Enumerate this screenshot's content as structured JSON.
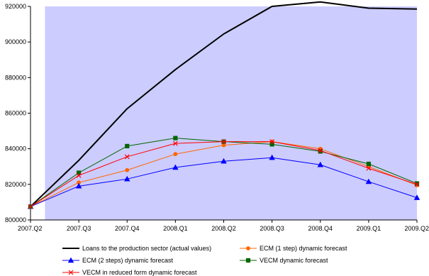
{
  "chart_data": {
    "type": "line",
    "categories": [
      "2007.Q2",
      "2007.Q3",
      "2007.Q4",
      "2008.Q1",
      "2008.Q2",
      "2008.Q3",
      "2008.Q4",
      "2009.Q1",
      "2009.Q2"
    ],
    "ylim": [
      800000,
      920000
    ],
    "yticks": [
      800000,
      820000,
      840000,
      860000,
      880000,
      900000,
      920000
    ],
    "ytick_labels": [
      "800000",
      "820000",
      "840000",
      "860000",
      "880000",
      "900000",
      "920000"
    ],
    "shaded_region": {
      "from_category": "2007.Q2",
      "to_category": "2009.Q2",
      "note_start_offset_fraction": 0.3,
      "color": "#ccccff"
    },
    "grid": false,
    "legend_position": "bottom",
    "series": [
      {
        "name": "Loans to the production sector (actual values)",
        "color": "#000000",
        "marker": "none",
        "line_width": 2,
        "values": [
          807500,
          833500,
          862500,
          884500,
          904500,
          920000,
          922500,
          919000,
          918500
        ]
      },
      {
        "name": "ECM (1 step) dynamic forecast",
        "color": "#ff6600",
        "marker": "circle",
        "line_width": 1,
        "values": [
          807500,
          821000,
          828000,
          837000,
          842000,
          844000,
          840000,
          830000,
          819500
        ]
      },
      {
        "name": "ECM (2 steps) dynamic forecast",
        "color": "#0000ff",
        "marker": "triangle",
        "line_width": 1,
        "values": [
          807500,
          819000,
          823000,
          829500,
          833000,
          835000,
          831000,
          821500,
          812500
        ]
      },
      {
        "name": "VECM dynamic forecast",
        "color": "#006600",
        "marker": "square",
        "line_width": 1,
        "values": [
          807500,
          826500,
          841500,
          846000,
          844000,
          842500,
          838500,
          831500,
          820500
        ]
      },
      {
        "name": "VECM in reduced form dynamic forecast",
        "color": "#ff0000",
        "marker": "x",
        "line_width": 1,
        "values": [
          807500,
          825000,
          835500,
          843000,
          844000,
          844000,
          839000,
          829000,
          820000
        ]
      }
    ]
  }
}
